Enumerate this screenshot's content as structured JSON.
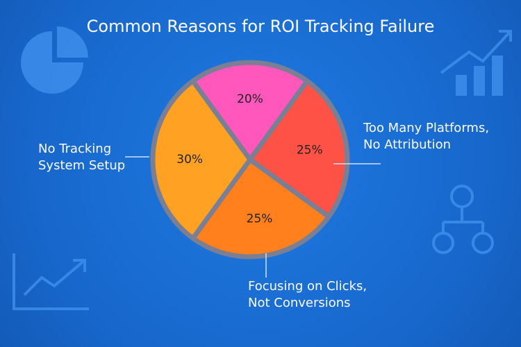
{
  "chart_data": {
    "type": "pie",
    "title": "Common Reasons for ROI Tracking Failure",
    "categories": [
      null,
      "Too Many Platforms, No Attribution",
      "Focusing on Clicks, Not Conversions",
      "No Tracking System Setup"
    ],
    "values": [
      20,
      25,
      25,
      30
    ],
    "value_labels": [
      "20%",
      "25%",
      "25%",
      "30%"
    ],
    "colors": [
      "#ff57bb",
      "#ff5246",
      "#ff801c",
      "#ffa223"
    ]
  }
}
